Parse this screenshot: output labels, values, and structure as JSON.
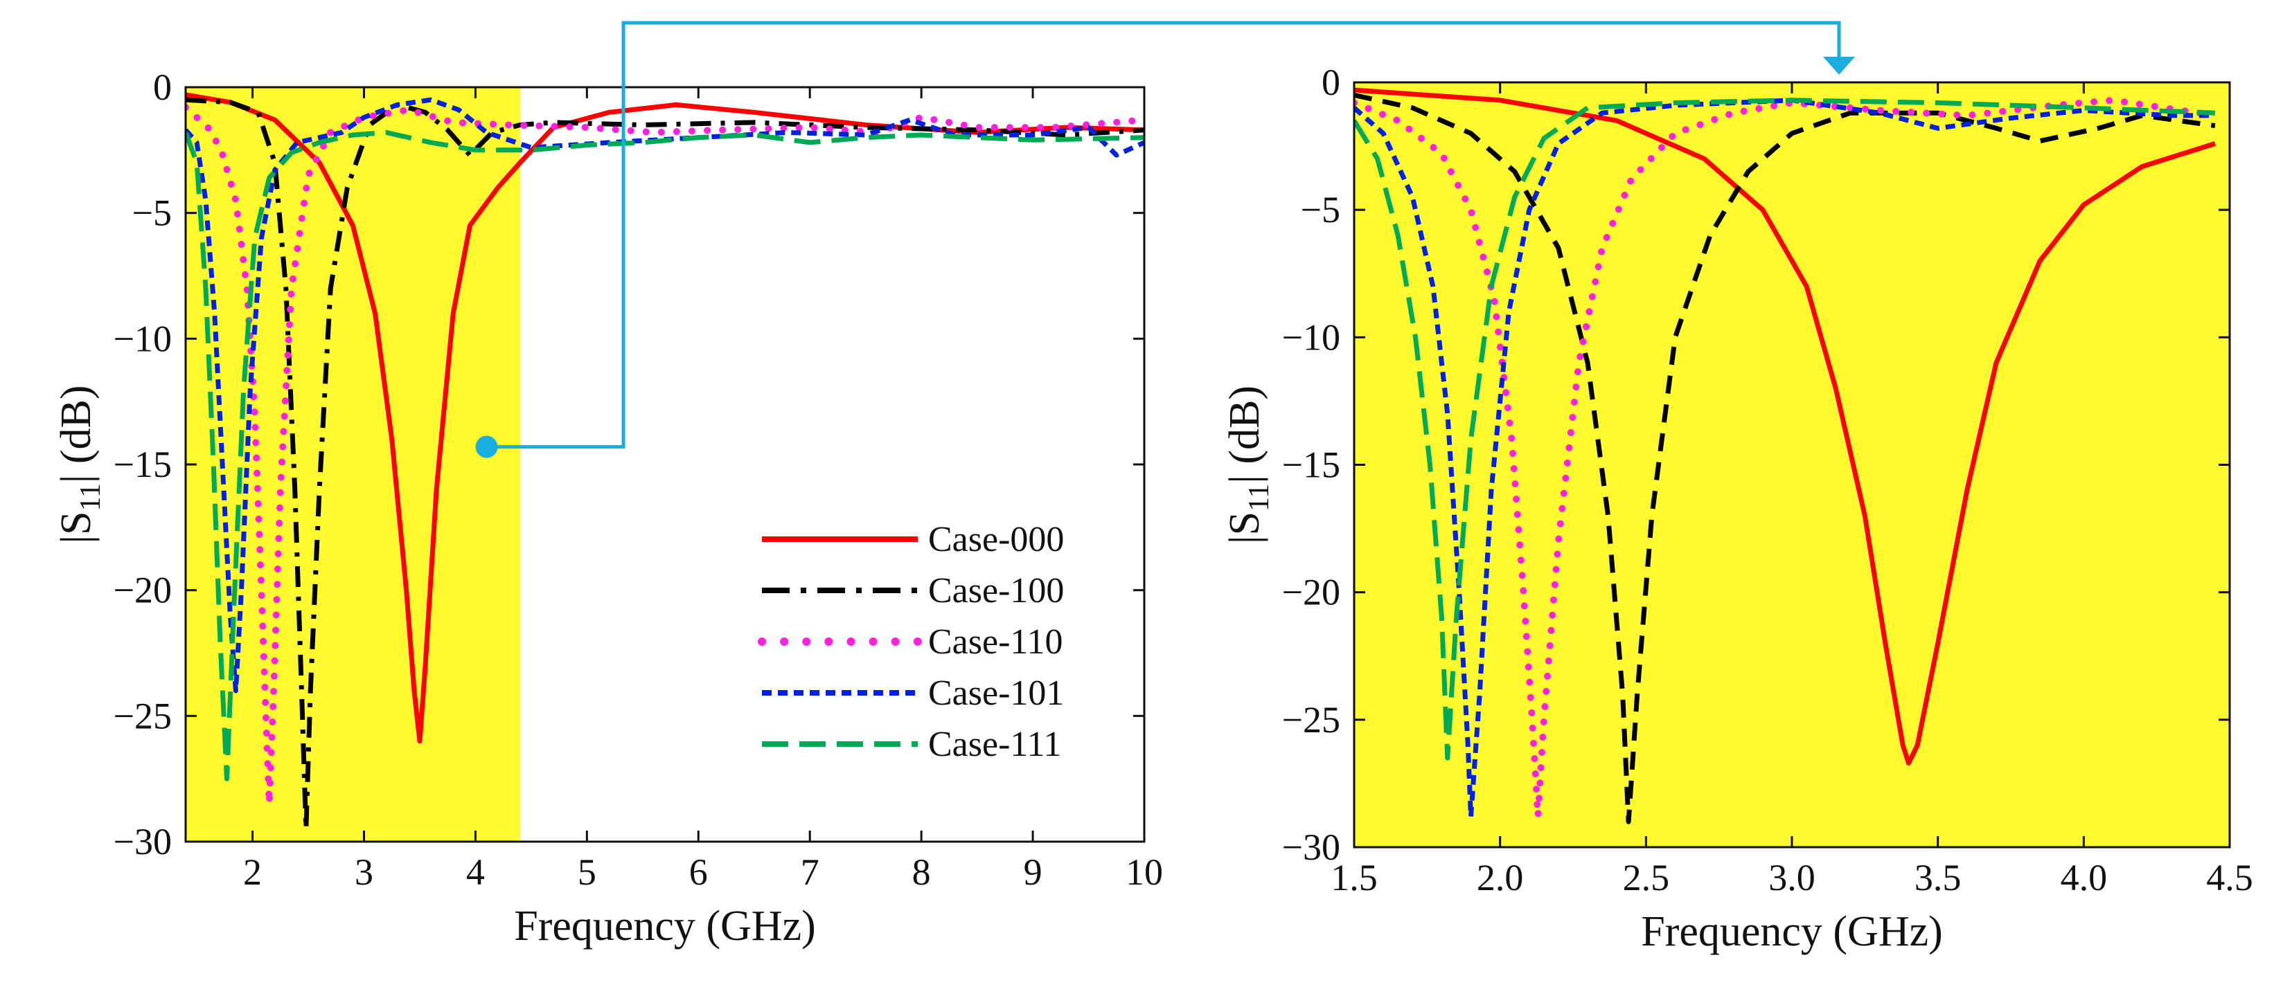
{
  "chart_data": [
    {
      "type": "line",
      "xlabel": "Frequency (GHz)",
      "ylabel_main": "|S",
      "ylabel_sub": "11",
      "ylabel_tail": "| (dB)",
      "xlim": [
        1.4,
        10
      ],
      "ylim": [
        -30,
        0
      ],
      "xticks": [
        2,
        3,
        4,
        5,
        6,
        7,
        8,
        9,
        10
      ],
      "xtick_labels": [
        "2",
        "3",
        "4",
        "5",
        "6",
        "7",
        "8",
        "9",
        "10"
      ],
      "yticks": [
        0,
        -5,
        -10,
        -15,
        -20,
        -25,
        -30
      ],
      "ytick_labels": [
        "0",
        "−5",
        "−10",
        "−15",
        "−20",
        "−25",
        "−30"
      ],
      "highlight_band": [
        1.4,
        4.4
      ],
      "highlight_color": "#fffa30",
      "legend_position": "lower-right",
      "series": [
        {
          "name": "Case-000",
          "color": "#ff0000",
          "style": "solid",
          "points": [
            [
              1.4,
              -0.3
            ],
            [
              1.8,
              -0.6
            ],
            [
              2.2,
              -1.3
            ],
            [
              2.6,
              -3.0
            ],
            [
              2.9,
              -5.5
            ],
            [
              3.1,
              -9.0
            ],
            [
              3.25,
              -14.0
            ],
            [
              3.38,
              -20.0
            ],
            [
              3.45,
              -24.0
            ],
            [
              3.5,
              -26.0
            ],
            [
              3.55,
              -23.0
            ],
            [
              3.65,
              -16.0
            ],
            [
              3.8,
              -9.0
            ],
            [
              3.95,
              -5.5
            ],
            [
              4.2,
              -4.0
            ],
            [
              4.4,
              -3.0
            ],
            [
              4.7,
              -1.6
            ],
            [
              5.2,
              -1.0
            ],
            [
              5.8,
              -0.7
            ],
            [
              6.5,
              -1.0
            ],
            [
              7.5,
              -1.5
            ],
            [
              8.5,
              -1.8
            ],
            [
              9.3,
              -1.6
            ],
            [
              10.0,
              -1.7
            ]
          ]
        },
        {
          "name": "Case-100",
          "color": "#000000",
          "style": "dashdot",
          "points": [
            [
              1.4,
              -0.5
            ],
            [
              1.8,
              -0.6
            ],
            [
              2.05,
              -1.0
            ],
            [
              2.2,
              -3.0
            ],
            [
              2.3,
              -8.0
            ],
            [
              2.38,
              -16.0
            ],
            [
              2.44,
              -24.0
            ],
            [
              2.48,
              -29.5
            ],
            [
              2.52,
              -24.0
            ],
            [
              2.6,
              -16.0
            ],
            [
              2.7,
              -8.0
            ],
            [
              2.85,
              -4.0
            ],
            [
              3.05,
              -1.5
            ],
            [
              3.3,
              -0.7
            ],
            [
              3.55,
              -1.0
            ],
            [
              3.75,
              -1.7
            ],
            [
              3.95,
              -2.7
            ],
            [
              4.15,
              -1.8
            ],
            [
              4.4,
              -1.5
            ],
            [
              4.7,
              -1.4
            ],
            [
              5.5,
              -1.5
            ],
            [
              6.5,
              -1.4
            ],
            [
              7.5,
              -1.6
            ],
            [
              8.5,
              -1.7
            ],
            [
              9.3,
              -1.9
            ],
            [
              10.0,
              -1.7
            ]
          ]
        },
        {
          "name": "Case-110",
          "color": "#ff22dd",
          "style": "dotted",
          "points": [
            [
              1.4,
              -0.8
            ],
            [
              1.5,
              -1.2
            ],
            [
              1.6,
              -1.6
            ],
            [
              1.72,
              -2.5
            ],
            [
              1.85,
              -4.5
            ],
            [
              1.95,
              -8.0
            ],
            [
              2.02,
              -13.0
            ],
            [
              2.08,
              -20.0
            ],
            [
              2.12,
              -25.0
            ],
            [
              2.15,
              -28.5
            ],
            [
              2.19,
              -24.0
            ],
            [
              2.25,
              -16.0
            ],
            [
              2.35,
              -8.0
            ],
            [
              2.5,
              -3.5
            ],
            [
              2.7,
              -1.8
            ],
            [
              3.0,
              -1.2
            ],
            [
              3.4,
              -0.9
            ],
            [
              3.8,
              -1.4
            ],
            [
              4.3,
              -1.5
            ],
            [
              5.0,
              -1.6
            ],
            [
              5.6,
              -1.8
            ],
            [
              6.2,
              -1.7
            ],
            [
              7.0,
              -1.6
            ],
            [
              7.6,
              -1.8
            ],
            [
              8.0,
              -1.2
            ],
            [
              8.5,
              -1.6
            ],
            [
              9.2,
              -1.6
            ],
            [
              10.0,
              -1.3
            ]
          ]
        },
        {
          "name": "Case-101",
          "color": "#0022dd",
          "style": "shortdash",
          "points": [
            [
              1.4,
              -1.7
            ],
            [
              1.5,
              -2.2
            ],
            [
              1.58,
              -4.5
            ],
            [
              1.66,
              -9.0
            ],
            [
              1.73,
              -15.0
            ],
            [
              1.8,
              -21.0
            ],
            [
              1.85,
              -24.0
            ],
            [
              1.9,
              -20.0
            ],
            [
              1.98,
              -12.0
            ],
            [
              2.08,
              -6.0
            ],
            [
              2.2,
              -3.3
            ],
            [
              2.4,
              -2.2
            ],
            [
              2.6,
              -2.0
            ],
            [
              2.8,
              -1.8
            ],
            [
              3.0,
              -1.2
            ],
            [
              3.3,
              -0.7
            ],
            [
              3.6,
              -0.5
            ],
            [
              3.85,
              -0.9
            ],
            [
              4.1,
              -1.8
            ],
            [
              4.5,
              -2.4
            ],
            [
              5.2,
              -2.2
            ],
            [
              6.0,
              -2.0
            ],
            [
              6.8,
              -1.8
            ],
            [
              7.5,
              -1.9
            ],
            [
              7.9,
              -1.3
            ],
            [
              8.3,
              -1.9
            ],
            [
              9.0,
              -1.9
            ],
            [
              9.5,
              -1.6
            ],
            [
              9.75,
              -2.7
            ],
            [
              10.0,
              -2.2
            ]
          ]
        },
        {
          "name": "Case-111",
          "color": "#00aa55",
          "style": "longdash",
          "points": [
            [
              1.4,
              -1.8
            ],
            [
              1.5,
              -3.0
            ],
            [
              1.58,
              -8.0
            ],
            [
              1.65,
              -15.0
            ],
            [
              1.71,
              -22.0
            ],
            [
              1.77,
              -27.5
            ],
            [
              1.83,
              -21.0
            ],
            [
              1.92,
              -12.0
            ],
            [
              2.02,
              -6.0
            ],
            [
              2.15,
              -3.6
            ],
            [
              2.35,
              -2.6
            ],
            [
              2.6,
              -2.2
            ],
            [
              2.9,
              -1.9
            ],
            [
              3.2,
              -1.8
            ],
            [
              3.6,
              -2.2
            ],
            [
              4.0,
              -2.5
            ],
            [
              4.5,
              -2.5
            ],
            [
              5.0,
              -2.3
            ],
            [
              5.5,
              -2.2
            ],
            [
              6.0,
              -2.0
            ],
            [
              6.5,
              -1.9
            ],
            [
              7.0,
              -2.2
            ],
            [
              7.5,
              -2.0
            ],
            [
              8.0,
              -1.9
            ],
            [
              9.0,
              -2.1
            ],
            [
              10.0,
              -2.0
            ]
          ]
        }
      ]
    },
    {
      "type": "line",
      "xlabel": "Frequency (GHz)",
      "ylabel_main": "|S",
      "ylabel_sub": "11",
      "ylabel_tail": "| (dB)",
      "xlim": [
        1.5,
        4.5
      ],
      "ylim": [
        -30,
        0
      ],
      "xticks": [
        1.5,
        2.0,
        2.5,
        3.0,
        3.5,
        4.0,
        4.5
      ],
      "xtick_labels": [
        "1.5",
        "2.0",
        "2.5",
        "3.0",
        "3.5",
        "4.0",
        "4.5"
      ],
      "yticks": [
        0,
        -5,
        -10,
        -15,
        -20,
        -25,
        -30
      ],
      "ytick_labels": [
        "0",
        "−5",
        "−10",
        "−15",
        "−20",
        "−25",
        "−30"
      ],
      "background_color": "#fffa30",
      "series": [
        {
          "name": "Case-000",
          "color": "#ff0000",
          "style": "solid",
          "points": [
            [
              1.5,
              -0.3
            ],
            [
              2.0,
              -0.7
            ],
            [
              2.4,
              -1.5
            ],
            [
              2.7,
              -3.0
            ],
            [
              2.9,
              -5.0
            ],
            [
              3.05,
              -8.0
            ],
            [
              3.15,
              -12.0
            ],
            [
              3.25,
              -17.0
            ],
            [
              3.32,
              -22.0
            ],
            [
              3.38,
              -26.0
            ],
            [
              3.4,
              -26.7
            ],
            [
              3.43,
              -26.0
            ],
            [
              3.5,
              -22.0
            ],
            [
              3.6,
              -16.0
            ],
            [
              3.7,
              -11.0
            ],
            [
              3.85,
              -7.0
            ],
            [
              4.0,
              -4.8
            ],
            [
              4.2,
              -3.3
            ],
            [
              4.45,
              -2.4
            ]
          ]
        },
        {
          "name": "Case-100",
          "color": "#000000",
          "style": "dashed",
          "points": [
            [
              1.5,
              -0.5
            ],
            [
              1.7,
              -1.0
            ],
            [
              1.9,
              -2.0
            ],
            [
              2.05,
              -3.5
            ],
            [
              2.2,
              -6.5
            ],
            [
              2.3,
              -11.0
            ],
            [
              2.37,
              -17.0
            ],
            [
              2.42,
              -24.0
            ],
            [
              2.44,
              -29.0
            ],
            [
              2.47,
              -24.0
            ],
            [
              2.52,
              -17.0
            ],
            [
              2.6,
              -10.0
            ],
            [
              2.72,
              -6.0
            ],
            [
              2.85,
              -3.5
            ],
            [
              3.0,
              -2.0
            ],
            [
              3.2,
              -1.2
            ],
            [
              3.5,
              -1.2
            ],
            [
              3.7,
              -1.8
            ],
            [
              3.85,
              -2.3
            ],
            [
              4.05,
              -1.8
            ],
            [
              4.2,
              -1.3
            ],
            [
              4.45,
              -1.7
            ]
          ]
        },
        {
          "name": "Case-110",
          "color": "#ff22dd",
          "style": "dotted",
          "points": [
            [
              1.5,
              -0.8
            ],
            [
              1.65,
              -1.5
            ],
            [
              1.8,
              -2.8
            ],
            [
              1.9,
              -5.0
            ],
            [
              1.98,
              -8.5
            ],
            [
              2.04,
              -14.0
            ],
            [
              2.08,
              -20.0
            ],
            [
              2.11,
              -25.0
            ],
            [
              2.13,
              -28.8
            ],
            [
              2.15,
              -25.0
            ],
            [
              2.2,
              -18.0
            ],
            [
              2.27,
              -11.0
            ],
            [
              2.35,
              -6.5
            ],
            [
              2.45,
              -3.8
            ],
            [
              2.6,
              -2.0
            ],
            [
              2.8,
              -1.2
            ],
            [
              3.0,
              -0.8
            ],
            [
              3.3,
              -1.1
            ],
            [
              3.6,
              -1.3
            ],
            [
              3.9,
              -0.9
            ],
            [
              4.1,
              -0.7
            ],
            [
              4.45,
              -1.3
            ]
          ]
        },
        {
          "name": "Case-101",
          "color": "#0022dd",
          "style": "shortdash",
          "points": [
            [
              1.5,
              -1.0
            ],
            [
              1.6,
              -2.0
            ],
            [
              1.7,
              -4.5
            ],
            [
              1.77,
              -8.0
            ],
            [
              1.82,
              -13.0
            ],
            [
              1.86,
              -20.0
            ],
            [
              1.89,
              -26.0
            ],
            [
              1.9,
              -28.8
            ],
            [
              1.93,
              -24.0
            ],
            [
              1.97,
              -16.0
            ],
            [
              2.03,
              -9.0
            ],
            [
              2.1,
              -5.0
            ],
            [
              2.2,
              -2.4
            ],
            [
              2.35,
              -1.2
            ],
            [
              2.6,
              -0.9
            ],
            [
              3.0,
              -0.7
            ],
            [
              3.3,
              -1.2
            ],
            [
              3.5,
              -1.8
            ],
            [
              3.75,
              -1.4
            ],
            [
              4.0,
              -1.1
            ],
            [
              4.3,
              -1.3
            ],
            [
              4.45,
              -1.3
            ]
          ]
        },
        {
          "name": "Case-111",
          "color": "#00aa55",
          "style": "longdash",
          "points": [
            [
              1.5,
              -1.5
            ],
            [
              1.58,
              -3.0
            ],
            [
              1.65,
              -6.0
            ],
            [
              1.71,
              -10.0
            ],
            [
              1.76,
              -15.0
            ],
            [
              1.8,
              -21.0
            ],
            [
              1.82,
              -26.5
            ],
            [
              1.85,
              -21.0
            ],
            [
              1.9,
              -14.0
            ],
            [
              1.97,
              -8.0
            ],
            [
              2.05,
              -4.5
            ],
            [
              2.15,
              -2.2
            ],
            [
              2.3,
              -1.0
            ],
            [
              2.6,
              -0.8
            ],
            [
              3.0,
              -0.7
            ],
            [
              3.5,
              -0.8
            ],
            [
              4.0,
              -1.0
            ],
            [
              4.45,
              -1.2
            ]
          ]
        }
      ]
    }
  ]
}
